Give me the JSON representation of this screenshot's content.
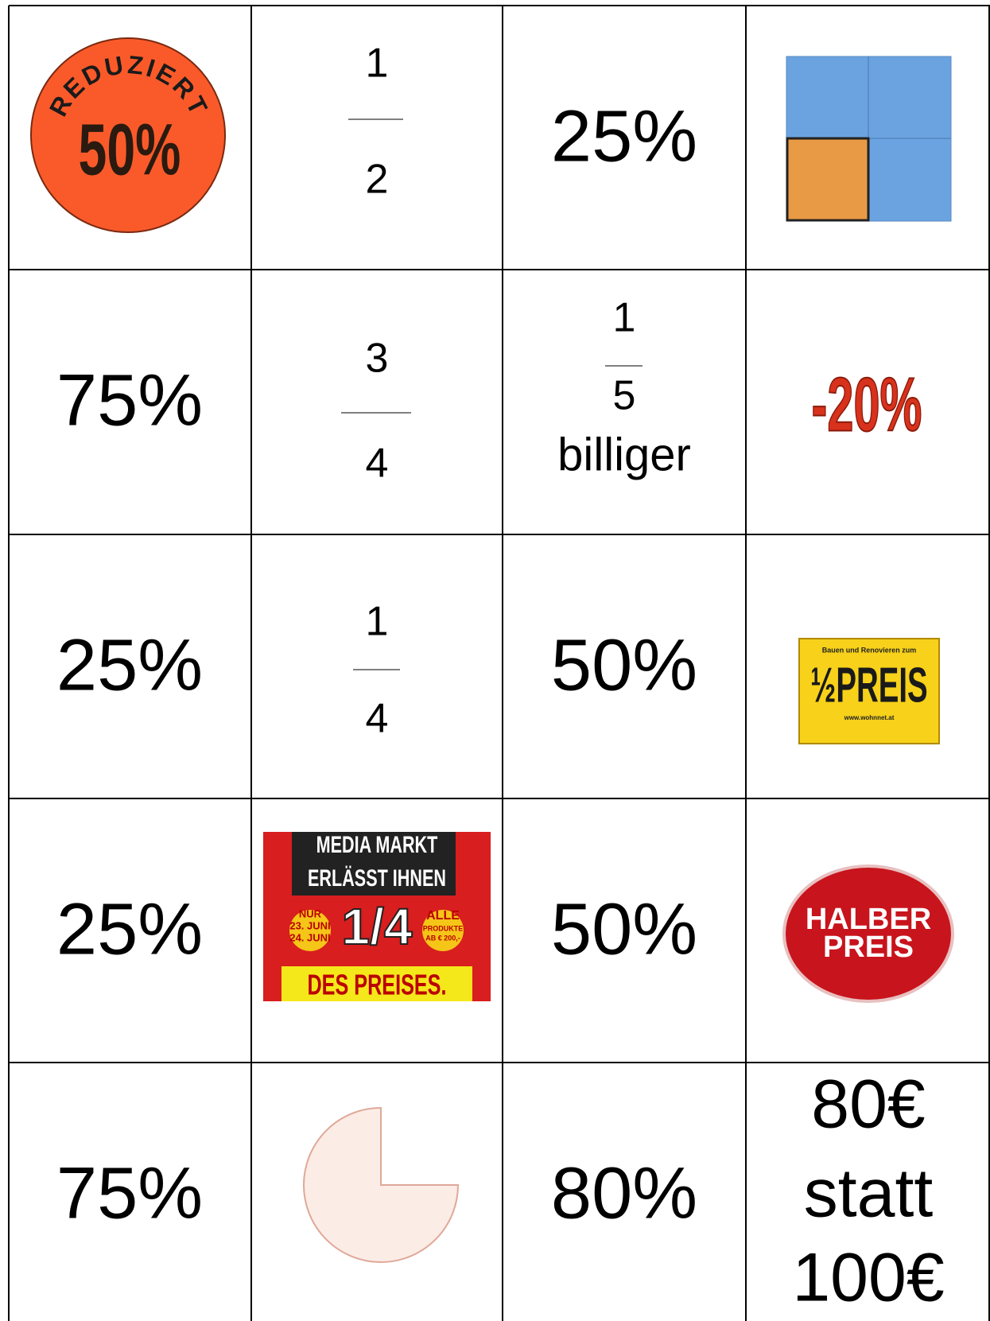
{
  "table": {
    "rows": [
      {
        "c1": {
          "arc": "REDUZIERT",
          "value": "50%"
        },
        "c2": {
          "numerator": "1",
          "denominator": "2"
        },
        "c3": "25%"
      },
      {
        "c1": "75%",
        "c2": {
          "numerator": "3",
          "denominator": "4"
        },
        "c3": {
          "numerator": "1",
          "denominator": "5",
          "suffix": "billiger"
        },
        "c4": "-20%"
      },
      {
        "c1": "25%",
        "c2": {
          "numerator": "1",
          "denominator": "4"
        },
        "c3": "50%",
        "c4": {
          "top": "Bauen und Renovieren zum",
          "main": "½PREIS",
          "url": "www.wohnnet.at"
        }
      },
      {
        "c1": "25%",
        "c2": {
          "lines": [
            "MEDIA MARKT",
            "ERLÄSST IHNEN"
          ],
          "left": [
            "NUR",
            "23. JUNI",
            "24. JUNI"
          ],
          "fraction": "1/4",
          "right": [
            "ALLE",
            "PRODUKTE",
            "AB € 200,-"
          ],
          "bottom": "DES PREISES."
        },
        "c3": "50%",
        "c4": {
          "lines": [
            "HALBER",
            "PREIS"
          ]
        }
      },
      {
        "c1": "75%",
        "c3": "80%",
        "c4": {
          "lines": [
            "80€",
            "statt",
            "100€"
          ]
        }
      }
    ]
  }
}
